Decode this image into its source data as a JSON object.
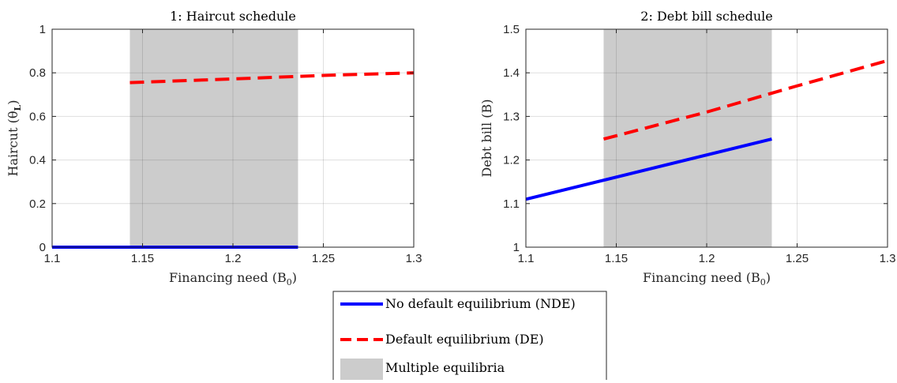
{
  "chart_data": [
    {
      "type": "line",
      "title": "1: Haircut schedule",
      "xlabel": "Financing need (B",
      "xlabel_sub": "0",
      "xlabel_close": ")",
      "ylabel": "Haircut (θ",
      "ylabel_sub": "L",
      "ylabel_close": ")",
      "xlim": [
        1.1,
        1.3
      ],
      "ylim": [
        0,
        1
      ],
      "xticks": [
        1.1,
        1.15,
        1.2,
        1.25,
        1.3
      ],
      "xtick_labels": [
        "1.1",
        "1.15",
        "1.2",
        "1.25",
        "1.3"
      ],
      "yticks": [
        0,
        0.2,
        0.4,
        0.6,
        0.8,
        1
      ],
      "ytick_labels": [
        "0",
        "0.2",
        "0.4",
        "0.6",
        "0.8",
        "1"
      ],
      "grid": true,
      "shaded_region": [
        1.143,
        1.236
      ],
      "series": [
        {
          "name": "No default equilibrium (NDE)",
          "color": "#0000ff",
          "dash": "solid",
          "x": [
            1.1,
            1.236
          ],
          "y": [
            0,
            0
          ]
        },
        {
          "name": "Default equilibrium (DE)",
          "color": "#ff0000",
          "dash": "dashed",
          "x": [
            1.143,
            1.2,
            1.25,
            1.3
          ],
          "y": [
            0.755,
            0.772,
            0.788,
            0.8
          ]
        }
      ]
    },
    {
      "type": "line",
      "title": "2: Debt bill schedule",
      "xlabel": "Financing need (B",
      "xlabel_sub": "0",
      "xlabel_close": ")",
      "ylabel": "Debt bill (B)",
      "xlim": [
        1.1,
        1.3
      ],
      "ylim": [
        1,
        1.5
      ],
      "xticks": [
        1.1,
        1.15,
        1.2,
        1.25,
        1.3
      ],
      "xtick_labels": [
        "1.1",
        "1.15",
        "1.2",
        "1.25",
        "1.3"
      ],
      "yticks": [
        1,
        1.1,
        1.2,
        1.3,
        1.4,
        1.5
      ],
      "ytick_labels": [
        "1",
        "1.1",
        "1.2",
        "1.3",
        "1.4",
        "1.5"
      ],
      "grid": true,
      "shaded_region": [
        1.143,
        1.236
      ],
      "series": [
        {
          "name": "No default equilibrium (NDE)",
          "color": "#0000ff",
          "dash": "solid",
          "x": [
            1.1,
            1.236
          ],
          "y": [
            1.11,
            1.248
          ]
        },
        {
          "name": "Default equilibrium (DE)",
          "color": "#ff0000",
          "dash": "dashed",
          "x": [
            1.143,
            1.2,
            1.25,
            1.3
          ],
          "y": [
            1.248,
            1.31,
            1.37,
            1.428
          ]
        }
      ]
    }
  ],
  "legend": {
    "placement": "bottom-center",
    "items": [
      {
        "label": "No default equilibrium (NDE)",
        "kind": "solid",
        "color": "#0000ff"
      },
      {
        "label": "Default equilibrium (DE)",
        "kind": "dashed",
        "color": "#ff0000"
      },
      {
        "label": "Multiple equilibria",
        "kind": "patch",
        "color": "#cccccc"
      }
    ]
  }
}
